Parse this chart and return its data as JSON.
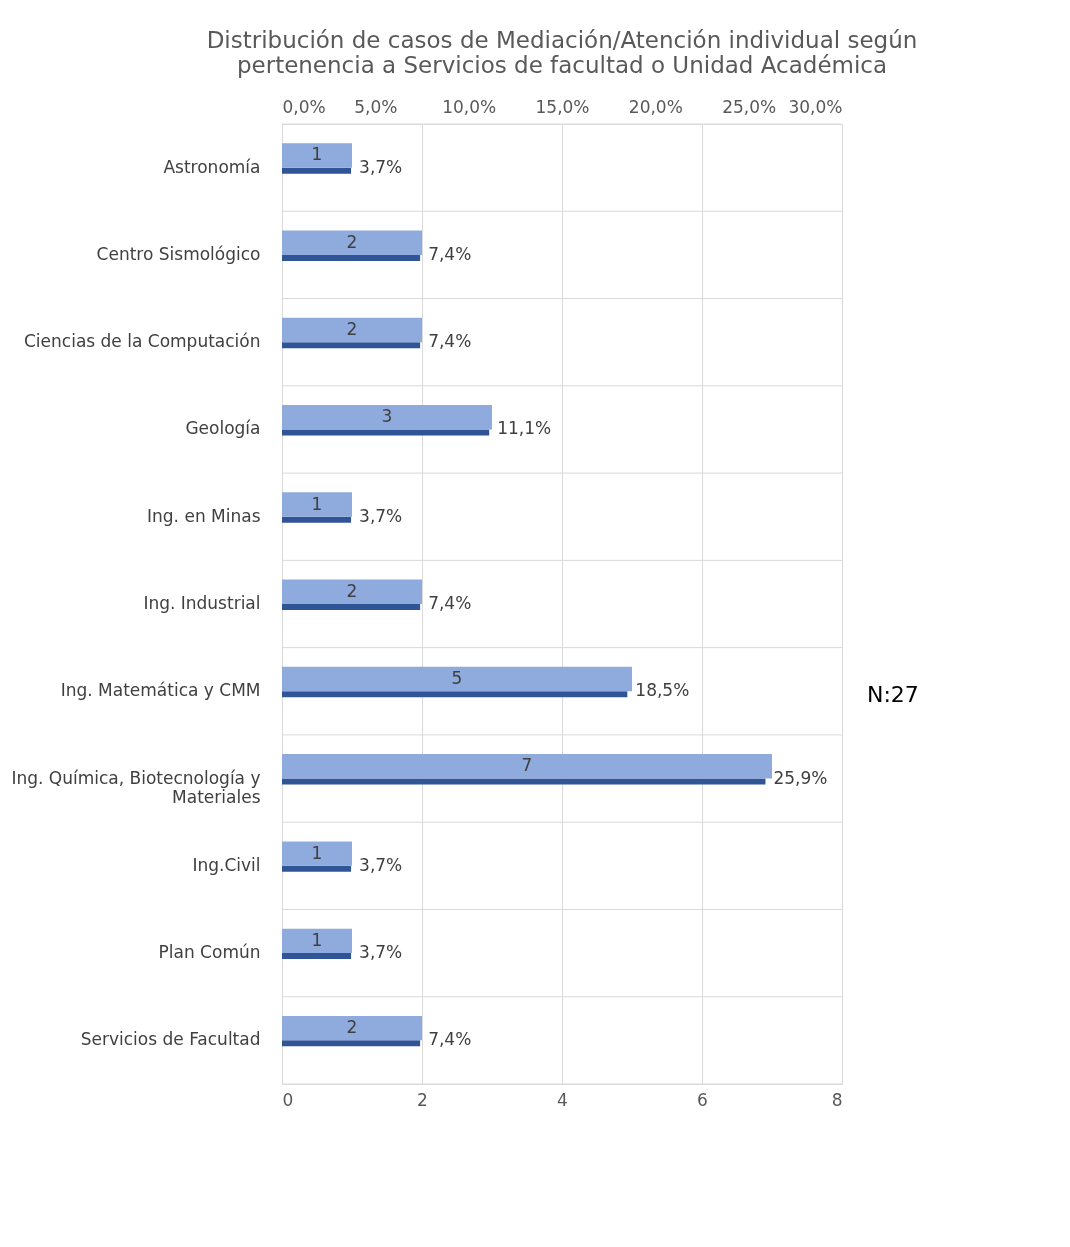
{
  "chart_data": {
    "type": "bar",
    "orientation": "horizontal",
    "title": "Distribución de casos de Mediación/Atención individual según pertenencia a  Servicios de facultad o Unidad Académica",
    "categories": [
      "Astronomía",
      "Centro Sismológico",
      "Ciencias de la Computación",
      "Geología",
      "Ing. en Minas",
      "Ing. Industrial",
      "Ing. Matemática y CMM",
      "Ing. Química, Biotecnología y Materiales",
      "Ing.Civil",
      "Plan Común ",
      "Servicios de Facultad"
    ],
    "series": [
      {
        "color": "#2f5597",
        "axis": "x2",
        "values": [
          3.7,
          7.4,
          7.4,
          11.1,
          3.7,
          7.4,
          18.5,
          25.9,
          3.7,
          3.7,
          7.4
        ],
        "value_labels": [
          "3,7%",
          "7,4%",
          "7,4%",
          "11,1%",
          "3,7%",
          "7,4%",
          "18,5%",
          "25,9%",
          "3,7%",
          "3,7%",
          "7,4%"
        ]
      },
      {
        "color": "#8faadc",
        "values": [
          1,
          2,
          2,
          3,
          1,
          2,
          5,
          7,
          1,
          1,
          2
        ],
        "value_labels": [
          "1",
          "2",
          "2",
          "3",
          "1",
          "2",
          "5",
          "7",
          "1",
          "1",
          "2"
        ]
      }
    ],
    "xlim": [
      0,
      8
    ],
    "xticks": [
      0,
      2,
      4,
      6,
      8
    ],
    "x2lim": [
      0,
      30
    ],
    "x2ticks": [
      {
        "value": 0,
        "label": "0,0%"
      },
      {
        "value": 5,
        "label": "5,0%"
      },
      {
        "value": 10,
        "label": "10,0%"
      },
      {
        "value": 15,
        "label": "15,0%"
      },
      {
        "value": 20,
        "label": "20,0%"
      },
      {
        "value": 25,
        "label": "25,0%"
      },
      {
        "value": 30,
        "label": "30,0%"
      }
    ],
    "grid": true,
    "annotations": [
      "N:27"
    ]
  }
}
